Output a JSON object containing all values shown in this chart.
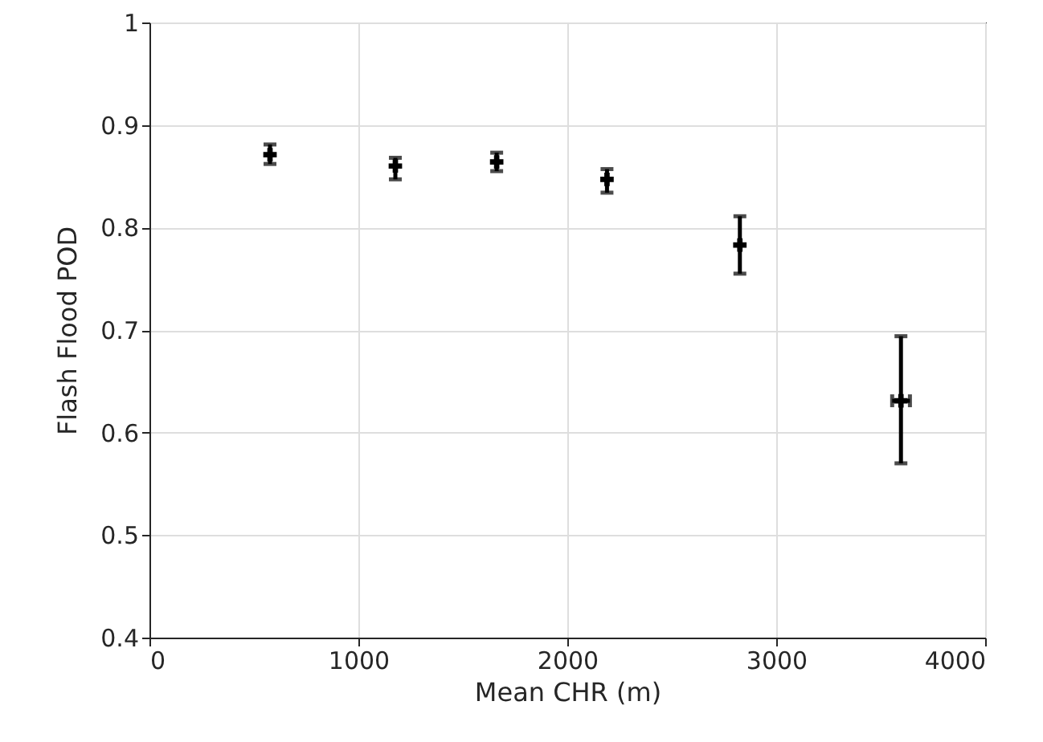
{
  "chart_data": {
    "type": "scatter",
    "xlabel": "Mean CHR (m)",
    "ylabel": "Flash Flood POD",
    "x": [
      577,
      1177,
      1662,
      2190,
      2826,
      3597
    ],
    "values": [
      0.871,
      0.86,
      0.864,
      0.847,
      0.783,
      0.631
    ],
    "errors": [
      [
        0.862,
        0.881
      ],
      [
        0.847,
        0.868
      ],
      [
        0.855,
        0.873
      ],
      [
        0.834,
        0.857
      ],
      [
        0.755,
        0.811
      ],
      [
        0.57,
        0.694
      ]
    ],
    "xerrors": [
      null,
      null,
      null,
      null,
      null,
      [
        3555,
        3640
      ]
    ],
    "color": "#000000",
    "marker": "cross",
    "xlim": [
      0,
      4000
    ],
    "xticks": [
      0,
      1000,
      2000,
      3000,
      4000
    ],
    "ylim": [
      0.4,
      1
    ],
    "yticks": [
      0.4,
      0.5,
      0.6,
      0.7,
      0.8,
      0.9,
      1
    ],
    "grid": true
  }
}
